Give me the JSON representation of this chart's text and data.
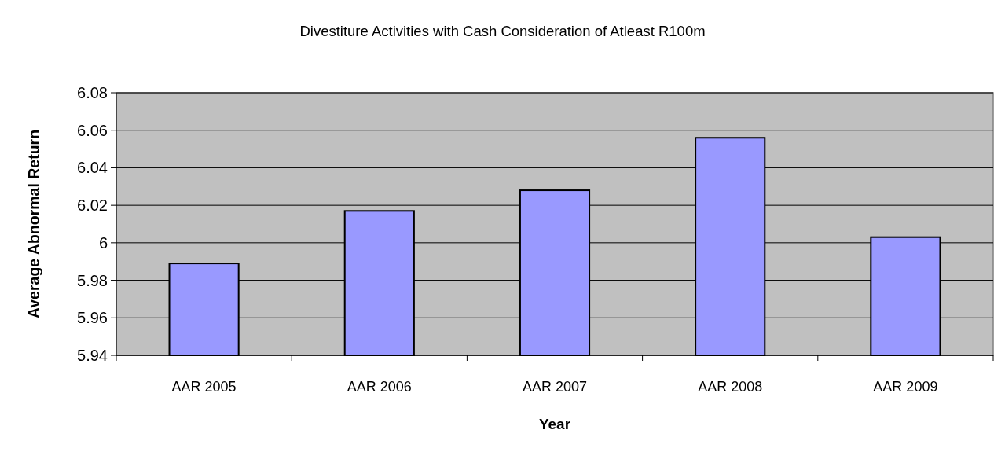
{
  "chart_data": {
    "type": "bar",
    "title": "Divestiture Activities with Cash Consideration of Atleast R100m",
    "xlabel": "Year",
    "ylabel": "Average Abnormal Return",
    "categories": [
      "AAR 2005",
      "AAR 2006",
      "AAR 2007",
      "AAR 2008",
      "AAR 2009"
    ],
    "values": [
      5.989,
      6.017,
      6.028,
      6.056,
      6.003
    ],
    "color": "#9999ff",
    "ylim": [
      5.94,
      6.08
    ],
    "yticks": [
      5.94,
      5.96,
      5.98,
      6,
      6.02,
      6.04,
      6.06,
      6.08
    ],
    "grid": "y"
  }
}
